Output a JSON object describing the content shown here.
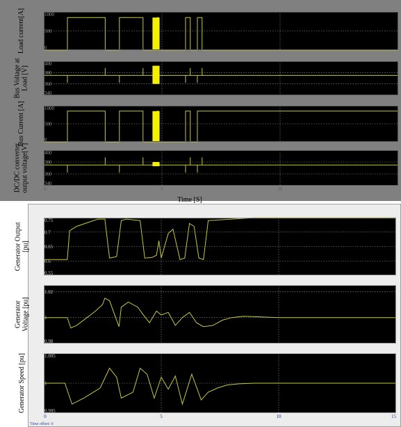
{
  "figure_top": {
    "xlabel": "Time [S]",
    "x_ticks": [
      "0",
      "5",
      "10"
    ],
    "panels": [
      {
        "ylabel_lines": [
          "Load current[A]"
        ],
        "y_ticks": [
          "0",
          "500",
          "1000"
        ]
      },
      {
        "ylabel_lines": [
          "Bus Voltage at",
          "Load [V]"
        ],
        "y_ticks": [
          "340",
          "360",
          "380",
          "400"
        ]
      },
      {
        "ylabel_lines": [
          "Bus Current [A]"
        ],
        "y_ticks": [
          "0",
          "500",
          "1000"
        ]
      },
      {
        "ylabel_lines": [
          "DC/DC converter",
          "output voltage[V]"
        ],
        "y_ticks": [
          "340",
          "360",
          "380",
          "400"
        ]
      }
    ]
  },
  "figure_bottom": {
    "x_ticks": [
      "0",
      "5",
      "10",
      "15"
    ],
    "time_offset": "Time offset:  0",
    "panels": [
      {
        "ylabel_lines": [
          "Generator Output",
          "[pu]"
        ],
        "y_ticks": [
          "0.55",
          "0.6",
          "0.65",
          "0.7",
          "0.75"
        ]
      },
      {
        "ylabel_lines": [
          "Generator",
          "Voltage [pu]"
        ],
        "y_ticks": [
          "0.98",
          "1",
          "1.02"
        ]
      },
      {
        "ylabel_lines": [
          "Generator Speed [pu]"
        ],
        "y_ticks": [
          "0.995",
          "1",
          "1.005"
        ]
      }
    ]
  },
  "colors": {
    "trace": "#c8c83c",
    "pulse": "#f5f000",
    "grid": "#9a9a9a",
    "plot_bg": "#000000",
    "top_frame": "#808080",
    "bottom_frame": "#ededed"
  },
  "chart_data": [
    {
      "type": "line",
      "title": "",
      "xlabel": "Time [S]",
      "ylabel": "Load current[A]",
      "xlim": [
        0,
        15
      ],
      "ylim": [
        0,
        1000
      ],
      "grid": true,
      "series": [
        {
          "x": [
            0,
            1.0,
            1.0,
            2.6,
            2.6,
            3.2,
            3.2,
            4.2,
            4.2,
            4.8,
            4.8,
            4.85,
            4.85,
            6.0,
            6.0,
            6.2,
            6.2,
            6.5,
            6.5,
            6.7,
            6.7,
            15
          ],
          "y": [
            0,
            0,
            850,
            850,
            0,
            0,
            850,
            850,
            0,
            0,
            850,
            850,
            0,
            0,
            850,
            850,
            0,
            0,
            850,
            850,
            0,
            0
          ]
        }
      ],
      "pulse_band": {
        "x": [
          4.6,
          4.9
        ],
        "y": [
          0,
          850
        ]
      }
    },
    {
      "type": "line",
      "title": "",
      "xlabel": "Time [S]",
      "ylabel": "Bus Voltage at Load [V]",
      "xlim": [
        0,
        15
      ],
      "ylim": [
        340,
        400
      ],
      "grid": true,
      "series": [
        {
          "baseline": 375,
          "spikes": [
            {
              "x": 1.0,
              "y": 362
            },
            {
              "x": 2.6,
              "y": 388
            },
            {
              "x": 3.2,
              "y": 362
            },
            {
              "x": 4.2,
              "y": 388
            },
            {
              "x": 6.0,
              "y": 362
            },
            {
              "x": 6.2,
              "y": 388
            },
            {
              "x": 6.5,
              "y": 362
            },
            {
              "x": 6.7,
              "y": 388
            }
          ]
        }
      ],
      "pulse_band": {
        "x": [
          4.6,
          4.9
        ],
        "y": [
          360,
          392
        ]
      }
    },
    {
      "type": "line",
      "title": "",
      "xlabel": "Time [S]",
      "ylabel": "Bus Current [A]",
      "xlim": [
        0,
        15
      ],
      "ylim": [
        0,
        1000
      ],
      "grid": true,
      "series": [
        {
          "x": [
            0,
            1.0,
            1.0,
            2.6,
            2.6,
            3.2,
            3.2,
            4.2,
            4.2,
            4.8,
            4.8,
            4.85,
            4.85,
            6.0,
            6.0,
            6.2,
            6.2,
            6.5,
            6.5,
            6.7,
            6.7,
            15
          ],
          "y": [
            0,
            0,
            850,
            850,
            0,
            0,
            850,
            850,
            0,
            0,
            850,
            850,
            0,
            0,
            850,
            850,
            0,
            0,
            850,
            850,
            850,
            850
          ]
        }
      ],
      "pulse_band": {
        "x": [
          4.6,
          4.9
        ],
        "y": [
          0,
          850
        ]
      }
    },
    {
      "type": "line",
      "title": "",
      "xlabel": "Time [S]",
      "ylabel": "DC/DC converter output voltage[V]",
      "xlim": [
        0,
        15
      ],
      "ylim": [
        340,
        400
      ],
      "grid": true,
      "series": [
        {
          "baseline": 375,
          "spikes": [
            {
              "x": 1.0,
              "y": 362
            },
            {
              "x": 2.6,
              "y": 388
            },
            {
              "x": 3.2,
              "y": 362
            },
            {
              "x": 4.2,
              "y": 388
            },
            {
              "x": 6.0,
              "y": 362
            },
            {
              "x": 6.2,
              "y": 388
            },
            {
              "x": 6.5,
              "y": 362
            },
            {
              "x": 6.7,
              "y": 388
            }
          ]
        }
      ],
      "pulse_band": {
        "x": [
          4.6,
          4.9
        ],
        "y": [
          373,
          380
        ]
      }
    },
    {
      "type": "line",
      "title": "",
      "xlabel": "",
      "ylabel": "Generator Output [pu]",
      "xlim": [
        0,
        15
      ],
      "ylim": [
        0.55,
        0.75
      ],
      "grid": true,
      "series": [
        {
          "x": [
            0,
            1.0,
            1.1,
            1.4,
            2.3,
            2.6,
            2.8,
            3.1,
            3.3,
            3.5,
            4.1,
            4.3,
            4.6,
            4.8,
            4.9,
            5.0,
            5.3,
            5.5,
            5.8,
            6.0,
            6.2,
            6.4,
            6.6,
            6.8,
            7.0,
            8.0,
            9.0,
            15
          ],
          "y": [
            0.605,
            0.605,
            0.705,
            0.72,
            0.745,
            0.745,
            0.61,
            0.615,
            0.74,
            0.745,
            0.74,
            0.61,
            0.612,
            0.62,
            0.67,
            0.61,
            0.695,
            0.71,
            0.605,
            0.61,
            0.73,
            0.72,
            0.61,
            0.605,
            0.74,
            0.745,
            0.75,
            0.75
          ]
        }
      ]
    },
    {
      "type": "line",
      "title": "",
      "xlabel": "",
      "ylabel": "Generator Voltage [pu]",
      "xlim": [
        0,
        15
      ],
      "ylim": [
        0.98,
        1.025
      ],
      "grid": true,
      "series": [
        {
          "x": [
            0,
            1.0,
            1.15,
            1.4,
            2.2,
            2.5,
            2.6,
            2.8,
            3.2,
            3.3,
            3.6,
            4.0,
            4.2,
            4.5,
            4.8,
            5.0,
            5.3,
            5.6,
            5.9,
            6.2,
            6.5,
            6.8,
            7.2,
            7.6,
            8.0,
            8.5,
            10,
            15
          ],
          "y": [
            1.0,
            1.0,
            0.992,
            0.994,
            1.005,
            1.01,
            1.015,
            1.013,
            0.993,
            1.008,
            1.012,
            1.008,
            1.003,
            0.996,
            1.005,
            1.002,
            1.004,
            0.994,
            1.0,
            1.004,
            0.996,
            0.993,
            0.994,
            0.998,
            1.0,
            1.001,
            1.0,
            1.0
          ]
        }
      ]
    },
    {
      "type": "line",
      "title": "",
      "xlabel": "",
      "ylabel": "Generator Speed [pu]",
      "xlim": [
        0,
        15
      ],
      "ylim": [
        0.995,
        1.005
      ],
      "grid": true,
      "series": [
        {
          "x": [
            0,
            0.9,
            1.2,
            1.7,
            2.4,
            2.8,
            3.1,
            3.3,
            3.8,
            4.1,
            4.4,
            4.7,
            5.0,
            5.3,
            5.6,
            5.9,
            6.3,
            6.7,
            7.0,
            7.4,
            7.8,
            8.3,
            9.0,
            10,
            15
          ],
          "y": [
            1.0,
            1.0,
            0.9965,
            0.9975,
            0.9992,
            1.0025,
            1.001,
            0.9975,
            0.9985,
            1.0025,
            1.0015,
            0.9975,
            1.001,
            0.999,
            1.0012,
            0.9965,
            1.0015,
            0.9972,
            0.9985,
            0.9992,
            0.9997,
            0.9999,
            1.0,
            1.0,
            1.0
          ]
        }
      ]
    }
  ]
}
